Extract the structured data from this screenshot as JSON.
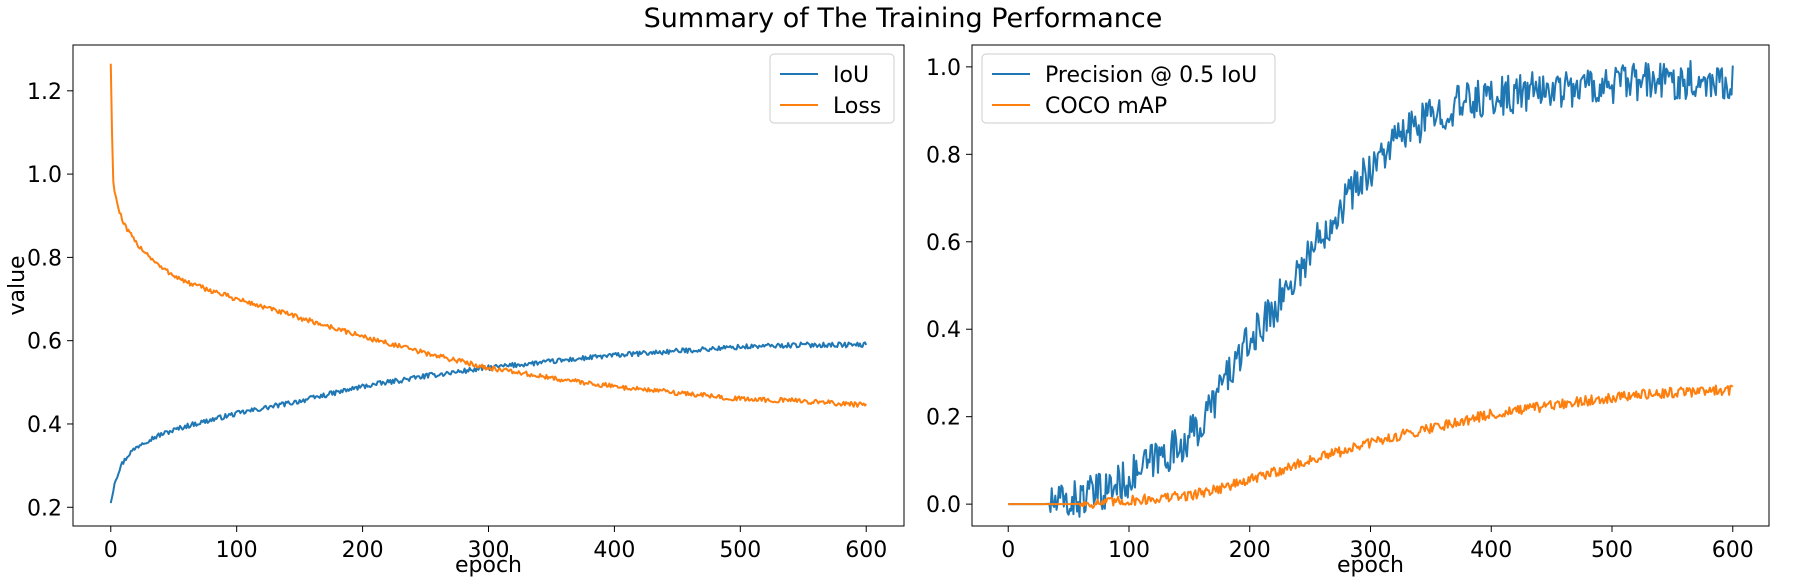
{
  "figure": {
    "title": "Summary of The Training Performance"
  },
  "chart_data": [
    {
      "type": "line",
      "xlabel": "epoch",
      "ylabel": "value",
      "xlim": [
        -30,
        630
      ],
      "ylim": [
        0.155,
        1.31
      ],
      "xticks": [
        0,
        100,
        200,
        300,
        400,
        500,
        600
      ],
      "xtick_labels": [
        "0",
        "100",
        "200",
        "300",
        "400",
        "500",
        "600"
      ],
      "yticks": [
        0.2,
        0.4,
        0.6,
        0.8,
        1.0,
        1.2
      ],
      "ytick_labels": [
        "0.2",
        "0.4",
        "0.6",
        "0.8",
        "1.0",
        "1.2"
      ],
      "legend_position": "top-right",
      "series": [
        {
          "name": "IoU",
          "color": "#1f77b4",
          "noise": 0.006,
          "points": [
            [
              0,
              0.21
            ],
            [
              3,
              0.26
            ],
            [
              8,
              0.3
            ],
            [
              15,
              0.33
            ],
            [
              25,
              0.355
            ],
            [
              40,
              0.375
            ],
            [
              60,
              0.395
            ],
            [
              100,
              0.425
            ],
            [
              150,
              0.455
            ],
            [
              200,
              0.49
            ],
            [
              250,
              0.515
            ],
            [
              300,
              0.535
            ],
            [
              350,
              0.55
            ],
            [
              400,
              0.565
            ],
            [
              450,
              0.575
            ],
            [
              500,
              0.585
            ],
            [
              550,
              0.59
            ],
            [
              600,
              0.59
            ]
          ]
        },
        {
          "name": "Loss",
          "color": "#ff7f0e",
          "noise": 0.006,
          "points": [
            [
              0,
              1.265
            ],
            [
              1,
              1.1
            ],
            [
              2,
              0.98
            ],
            [
              5,
              0.93
            ],
            [
              10,
              0.88
            ],
            [
              20,
              0.835
            ],
            [
              40,
              0.775
            ],
            [
              60,
              0.74
            ],
            [
              100,
              0.7
            ],
            [
              150,
              0.655
            ],
            [
              200,
              0.61
            ],
            [
              250,
              0.57
            ],
            [
              300,
              0.535
            ],
            [
              350,
              0.51
            ],
            [
              400,
              0.49
            ],
            [
              450,
              0.475
            ],
            [
              500,
              0.46
            ],
            [
              550,
              0.455
            ],
            [
              600,
              0.445
            ]
          ]
        }
      ]
    },
    {
      "type": "line",
      "xlabel": "epoch",
      "ylabel": "",
      "xlim": [
        -30,
        630
      ],
      "ylim": [
        -0.05,
        1.05
      ],
      "xticks": [
        0,
        100,
        200,
        300,
        400,
        500,
        600
      ],
      "xtick_labels": [
        "0",
        "100",
        "200",
        "300",
        "400",
        "500",
        "600"
      ],
      "yticks": [
        0.0,
        0.2,
        0.4,
        0.6,
        0.8,
        1.0
      ],
      "ytick_labels": [
        "0.0",
        "0.2",
        "0.4",
        "0.6",
        "0.8",
        "1.0"
      ],
      "legend_position": "top-left",
      "series": [
        {
          "name": "Precision @ 0.5 IoU",
          "color": "#1f77b4",
          "noise": 0.045,
          "noise_from": 35,
          "points": [
            [
              0,
              0
            ],
            [
              30,
              0
            ],
            [
              50,
              0.005
            ],
            [
              80,
              0.03
            ],
            [
              100,
              0.06
            ],
            [
              120,
              0.1
            ],
            [
              140,
              0.13
            ],
            [
              160,
              0.18
            ],
            [
              180,
              0.29
            ],
            [
              200,
              0.37
            ],
            [
              220,
              0.45
            ],
            [
              240,
              0.53
            ],
            [
              260,
              0.62
            ],
            [
              280,
              0.7
            ],
            [
              300,
              0.77
            ],
            [
              320,
              0.83
            ],
            [
              340,
              0.87
            ],
            [
              360,
              0.9
            ],
            [
              380,
              0.92
            ],
            [
              400,
              0.93
            ],
            [
              450,
              0.95
            ],
            [
              500,
              0.96
            ],
            [
              550,
              0.97
            ],
            [
              600,
              0.97
            ]
          ]
        },
        {
          "name": "COCO mAP",
          "color": "#ff7f0e",
          "noise": 0.012,
          "noise_from": 60,
          "points": [
            [
              0,
              0
            ],
            [
              50,
              0
            ],
            [
              80,
              0.003
            ],
            [
              100,
              0.008
            ],
            [
              120,
              0.012
            ],
            [
              150,
              0.02
            ],
            [
              180,
              0.04
            ],
            [
              200,
              0.055
            ],
            [
              250,
              0.1
            ],
            [
              300,
              0.14
            ],
            [
              350,
              0.175
            ],
            [
              400,
              0.205
            ],
            [
              450,
              0.225
            ],
            [
              500,
              0.245
            ],
            [
              550,
              0.255
            ],
            [
              600,
              0.262
            ]
          ]
        }
      ]
    }
  ]
}
